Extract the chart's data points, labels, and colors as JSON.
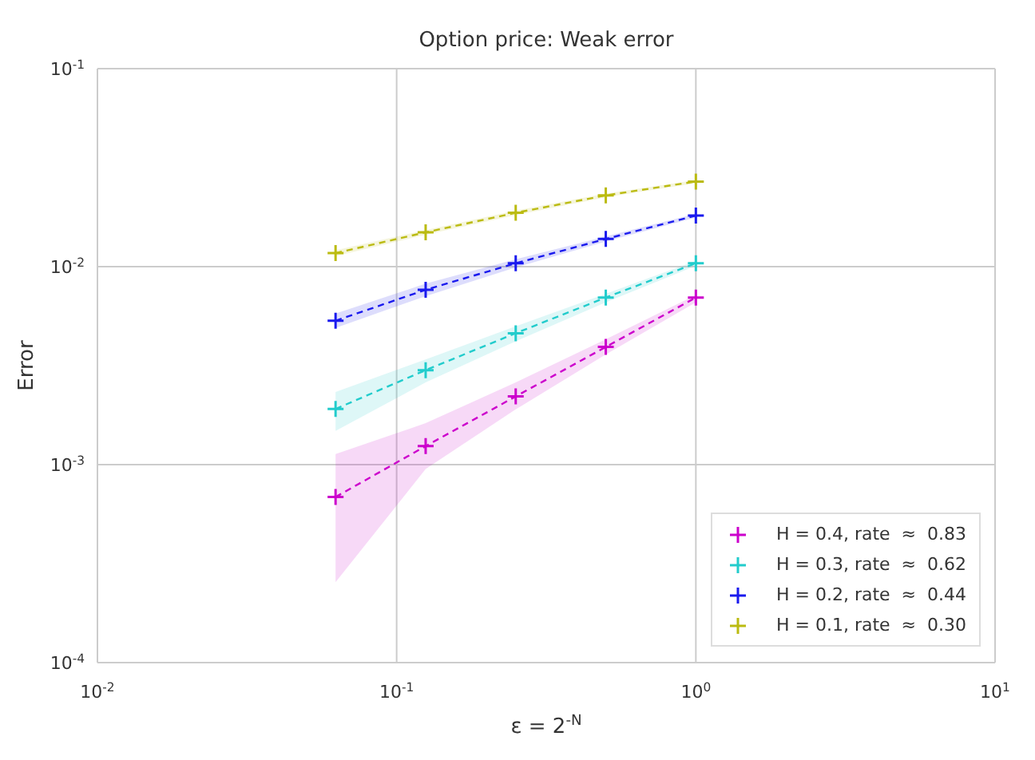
{
  "chart_data": {
    "type": "line",
    "title": "Option price: Weak error",
    "xlabel": "ε = 2$^{-N}$",
    "ylabel": "Error",
    "x": [
      0.0625,
      0.125,
      0.25,
      0.5,
      1
    ],
    "series": [
      {
        "name": "H = 0.4, rate  ≈  0.83",
        "color": "#cc00cc",
        "values": [
          0.000686,
          0.00124,
          0.00221,
          0.00393,
          0.00698
        ],
        "lower": [
          0.000255,
          0.00095,
          0.0019,
          0.0036,
          0.0066
        ],
        "upper": [
          0.00113,
          0.00162,
          0.0026,
          0.0043,
          0.0072
        ]
      },
      {
        "name": "H = 0.3, rate  ≈  0.62",
        "color": "#22cccc",
        "values": [
          0.00191,
          0.003,
          0.00461,
          0.00698,
          0.0104
        ],
        "lower": [
          0.00148,
          0.0026,
          0.0042,
          0.0066,
          0.0101
        ],
        "upper": [
          0.00233,
          0.0034,
          0.005,
          0.0073,
          0.0107
        ]
      },
      {
        "name": "H = 0.2, rate  ≈  0.44",
        "color": "#1a1aee",
        "values": [
          0.00533,
          0.00764,
          0.0104,
          0.0138,
          0.0181
        ],
        "lower": [
          0.0049,
          0.0071,
          0.0099,
          0.0134,
          0.0177
        ],
        "upper": [
          0.0058,
          0.0082,
          0.0109,
          0.0142,
          0.0185
        ]
      },
      {
        "name": "H = 0.1, rate  ≈  0.30",
        "color": "#bbbb11",
        "values": [
          0.0117,
          0.0149,
          0.0187,
          0.0229,
          0.0269
        ],
        "lower": [
          0.0113,
          0.0145,
          0.0182,
          0.0224,
          0.0264
        ],
        "upper": [
          0.0121,
          0.0153,
          0.0192,
          0.0234,
          0.0274
        ]
      }
    ],
    "log": "xy",
    "xlim": [
      0.01,
      10
    ],
    "ylim": [
      0.0001,
      0.1
    ],
    "xticks": [
      {
        "value": 0.01,
        "label": "10$^{-2}$"
      },
      {
        "value": 0.1,
        "label": "10$^{-1}$"
      },
      {
        "value": 1,
        "label": "10$^{0}$"
      },
      {
        "value": 10,
        "label": "10$^{1}$"
      }
    ],
    "yticks": [
      {
        "value": 0.0001,
        "label": "10$^{-4}$"
      },
      {
        "value": 0.001,
        "label": "10$^{-3}$"
      },
      {
        "value": 0.01,
        "label": "10$^{-2}$"
      },
      {
        "value": 0.1,
        "label": "10$^{-1}$"
      }
    ],
    "grid": true,
    "legend": "bottom right",
    "marker": "cross",
    "line_style": "dashed"
  }
}
